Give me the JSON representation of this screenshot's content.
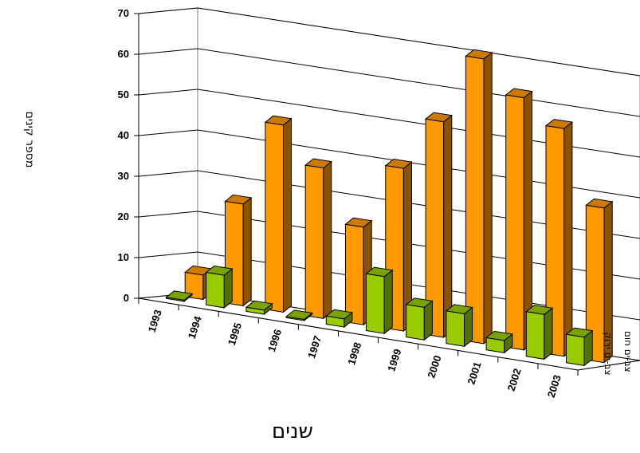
{
  "chart_data": {
    "type": "bar",
    "style": "3d-clustered-depth",
    "title": "",
    "xlabel": "שנים",
    "ylabel": "מספר קינים",
    "ylim": [
      0,
      70
    ],
    "yticks": [
      0,
      10,
      20,
      30,
      40,
      50,
      60,
      70
    ],
    "grid": true,
    "categories": [
      "1993",
      "1994",
      "1995",
      "1996",
      "1997",
      "1998",
      "1999",
      "2000",
      "2001",
      "2002",
      "2003"
    ],
    "series": [
      {
        "name": "צב-ים ירוק",
        "color": "#99cc00",
        "values": [
          0,
          8,
          1,
          0,
          2,
          14,
          8,
          8,
          3,
          11,
          7
        ]
      },
      {
        "name": "צב-ים חום",
        "color": "#ff9900",
        "values": [
          6,
          25,
          46,
          37,
          24,
          40,
          53,
          70,
          62,
          56,
          38
        ]
      }
    ]
  }
}
